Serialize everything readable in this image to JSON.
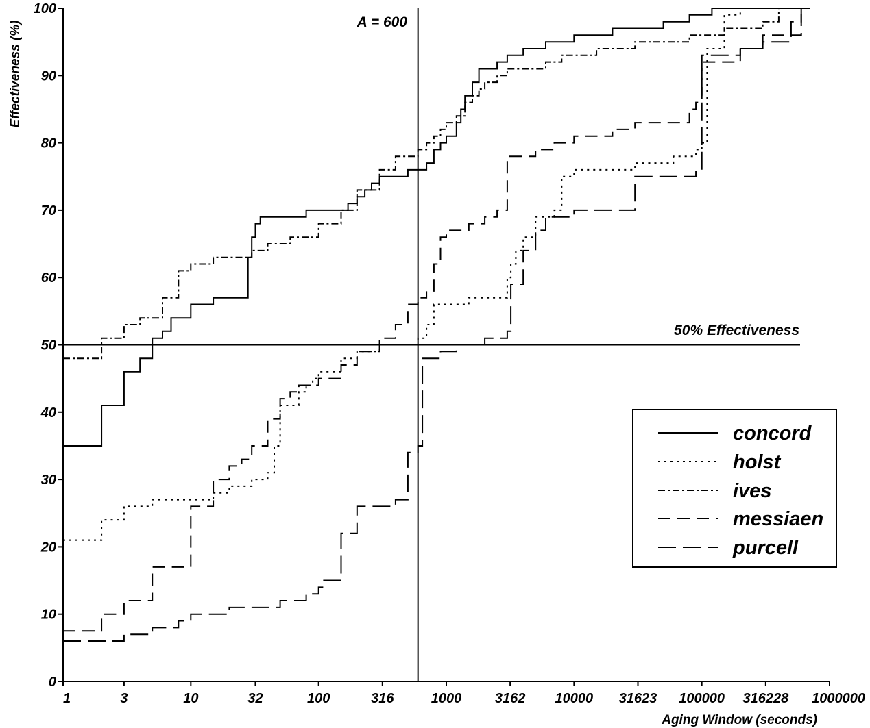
{
  "chart_data": {
    "type": "line",
    "title": "",
    "xlabel": "Aging Window (seconds)",
    "ylabel": "Effectiveness (%)",
    "x_scale": "log",
    "xlim": [
      1,
      1000000
    ],
    "ylim": [
      0,
      100
    ],
    "x_ticks": [
      1,
      3,
      10,
      32,
      100,
      316,
      1000,
      3162,
      10000,
      31623,
      100000,
      316228,
      1000000
    ],
    "x_tick_labels": [
      "1",
      "3",
      "10",
      "32",
      "100",
      "316",
      "1000",
      "3162",
      "10000",
      "31623",
      "100000",
      "316228",
      "1000000"
    ],
    "y_ticks": [
      0,
      10,
      20,
      30,
      40,
      50,
      60,
      70,
      80,
      90,
      100
    ],
    "y_tick_labels": [
      "0",
      "10",
      "20",
      "30",
      "40",
      "50",
      "60",
      "70",
      "80",
      "90",
      "100"
    ],
    "grid": false,
    "legend_position": "lower-right",
    "reference_lines": {
      "vertical": {
        "x": 600,
        "label": "A = 600"
      },
      "horizontal": {
        "y": 50,
        "label": "50% Effectiveness"
      }
    },
    "series": [
      {
        "name": "concord",
        "dash": "solid",
        "x": [
          1,
          2,
          3,
          4,
          5,
          6,
          7,
          10,
          15,
          26,
          28,
          30,
          32,
          35,
          60,
          80,
          150,
          170,
          200,
          230,
          260,
          300,
          400,
          500,
          600,
          700,
          800,
          900,
          1000,
          1200,
          1300,
          1400,
          1600,
          1800,
          2000,
          2500,
          3000,
          4000,
          6000,
          10000,
          20000,
          50000,
          80000,
          120000,
          300000,
          500000,
          700000
        ],
        "y": [
          35,
          41,
          46,
          48,
          51,
          52,
          54,
          56,
          57,
          57,
          63,
          66,
          68,
          69,
          69,
          70,
          70,
          71,
          72,
          73,
          74,
          75,
          75,
          76,
          76,
          77,
          79,
          80,
          81,
          83,
          85,
          87,
          89,
          91,
          91,
          92,
          93,
          94,
          95,
          96,
          97,
          98,
          99,
          100,
          100,
          100,
          100
        ]
      },
      {
        "name": "holst",
        "dash": "dot",
        "x": [
          1,
          2,
          3,
          5,
          10,
          15,
          20,
          25,
          30,
          40,
          45,
          50,
          60,
          70,
          80,
          90,
          100,
          150,
          200,
          250,
          300,
          400,
          600,
          650,
          700,
          800,
          1000,
          1500,
          2000,
          2800,
          3000,
          3200,
          3500,
          4000,
          5000,
          7000,
          8000,
          10000,
          30000,
          60000,
          90000,
          100000,
          110000,
          150000,
          200000,
          500000
        ],
        "y": [
          21,
          24,
          26,
          27,
          27,
          28,
          29,
          29,
          30,
          31,
          35,
          41,
          41,
          43,
          44,
          45,
          46,
          48,
          49,
          49,
          50,
          50,
          51,
          51,
          53,
          56,
          56,
          57,
          57,
          57,
          60,
          62,
          64,
          66,
          69,
          70,
          75,
          76,
          77,
          78,
          79,
          80,
          94,
          99,
          100,
          100
        ]
      },
      {
        "name": "ives",
        "dash": "dashdot",
        "x": [
          1,
          2,
          3,
          4,
          6,
          8,
          10,
          15,
          20,
          30,
          40,
          60,
          100,
          150,
          200,
          300,
          400,
          500,
          600,
          700,
          800,
          900,
          1000,
          1200,
          1400,
          1600,
          1800,
          2000,
          2500,
          3000,
          4000,
          6000,
          8000,
          10000,
          15000,
          20000,
          30000,
          50000,
          80000,
          100000,
          150000,
          300000,
          400000,
          600000
        ],
        "y": [
          48,
          51,
          53,
          54,
          57,
          61,
          62,
          63,
          63,
          64,
          65,
          66,
          68,
          70,
          73,
          76,
          78,
          78,
          79,
          80,
          81,
          82,
          83,
          84,
          86,
          87,
          88,
          89,
          90,
          91,
          91,
          92,
          93,
          93,
          94,
          94,
          95,
          95,
          96,
          96,
          97,
          98,
          100,
          100
        ]
      },
      {
        "name": "messiaen",
        "dash": "dash",
        "x": [
          1,
          2,
          3,
          5,
          10,
          15,
          20,
          25,
          30,
          40,
          50,
          60,
          70,
          100,
          150,
          200,
          300,
          400,
          500,
          600,
          700,
          800,
          900,
          1000,
          1500,
          2000,
          2500,
          3000,
          5000,
          7000,
          10000,
          20000,
          30000,
          60000,
          80000,
          90000,
          100000,
          200000,
          300000,
          600000
        ],
        "y": [
          7.5,
          10,
          12,
          17,
          26,
          30,
          32,
          33,
          35,
          39,
          42,
          43,
          44,
          45,
          47,
          49,
          51,
          53,
          56,
          57,
          58,
          62,
          66,
          67,
          68,
          69,
          70,
          78,
          79,
          80,
          81,
          82,
          83,
          83,
          85,
          86,
          92,
          94,
          96,
          100
        ]
      },
      {
        "name": "purcell",
        "dash": "longdash",
        "x": [
          1,
          2,
          3,
          5,
          8,
          10,
          20,
          30,
          50,
          80,
          100,
          110,
          150,
          200,
          400,
          500,
          600,
          650,
          700,
          900,
          1200,
          2000,
          3000,
          3200,
          4000,
          5000,
          6000,
          10000,
          30000,
          40000,
          60000,
          90000,
          100000,
          200000,
          300000,
          500000,
          600000
        ],
        "y": [
          6,
          6,
          7,
          8,
          9,
          10,
          11,
          11,
          12,
          13,
          14,
          15,
          22,
          26,
          27,
          34,
          35,
          48,
          48,
          49,
          50,
          51,
          52,
          59,
          64,
          67,
          69,
          70,
          75,
          75,
          75,
          76,
          93,
          94,
          95,
          98,
          100
        ]
      }
    ]
  }
}
